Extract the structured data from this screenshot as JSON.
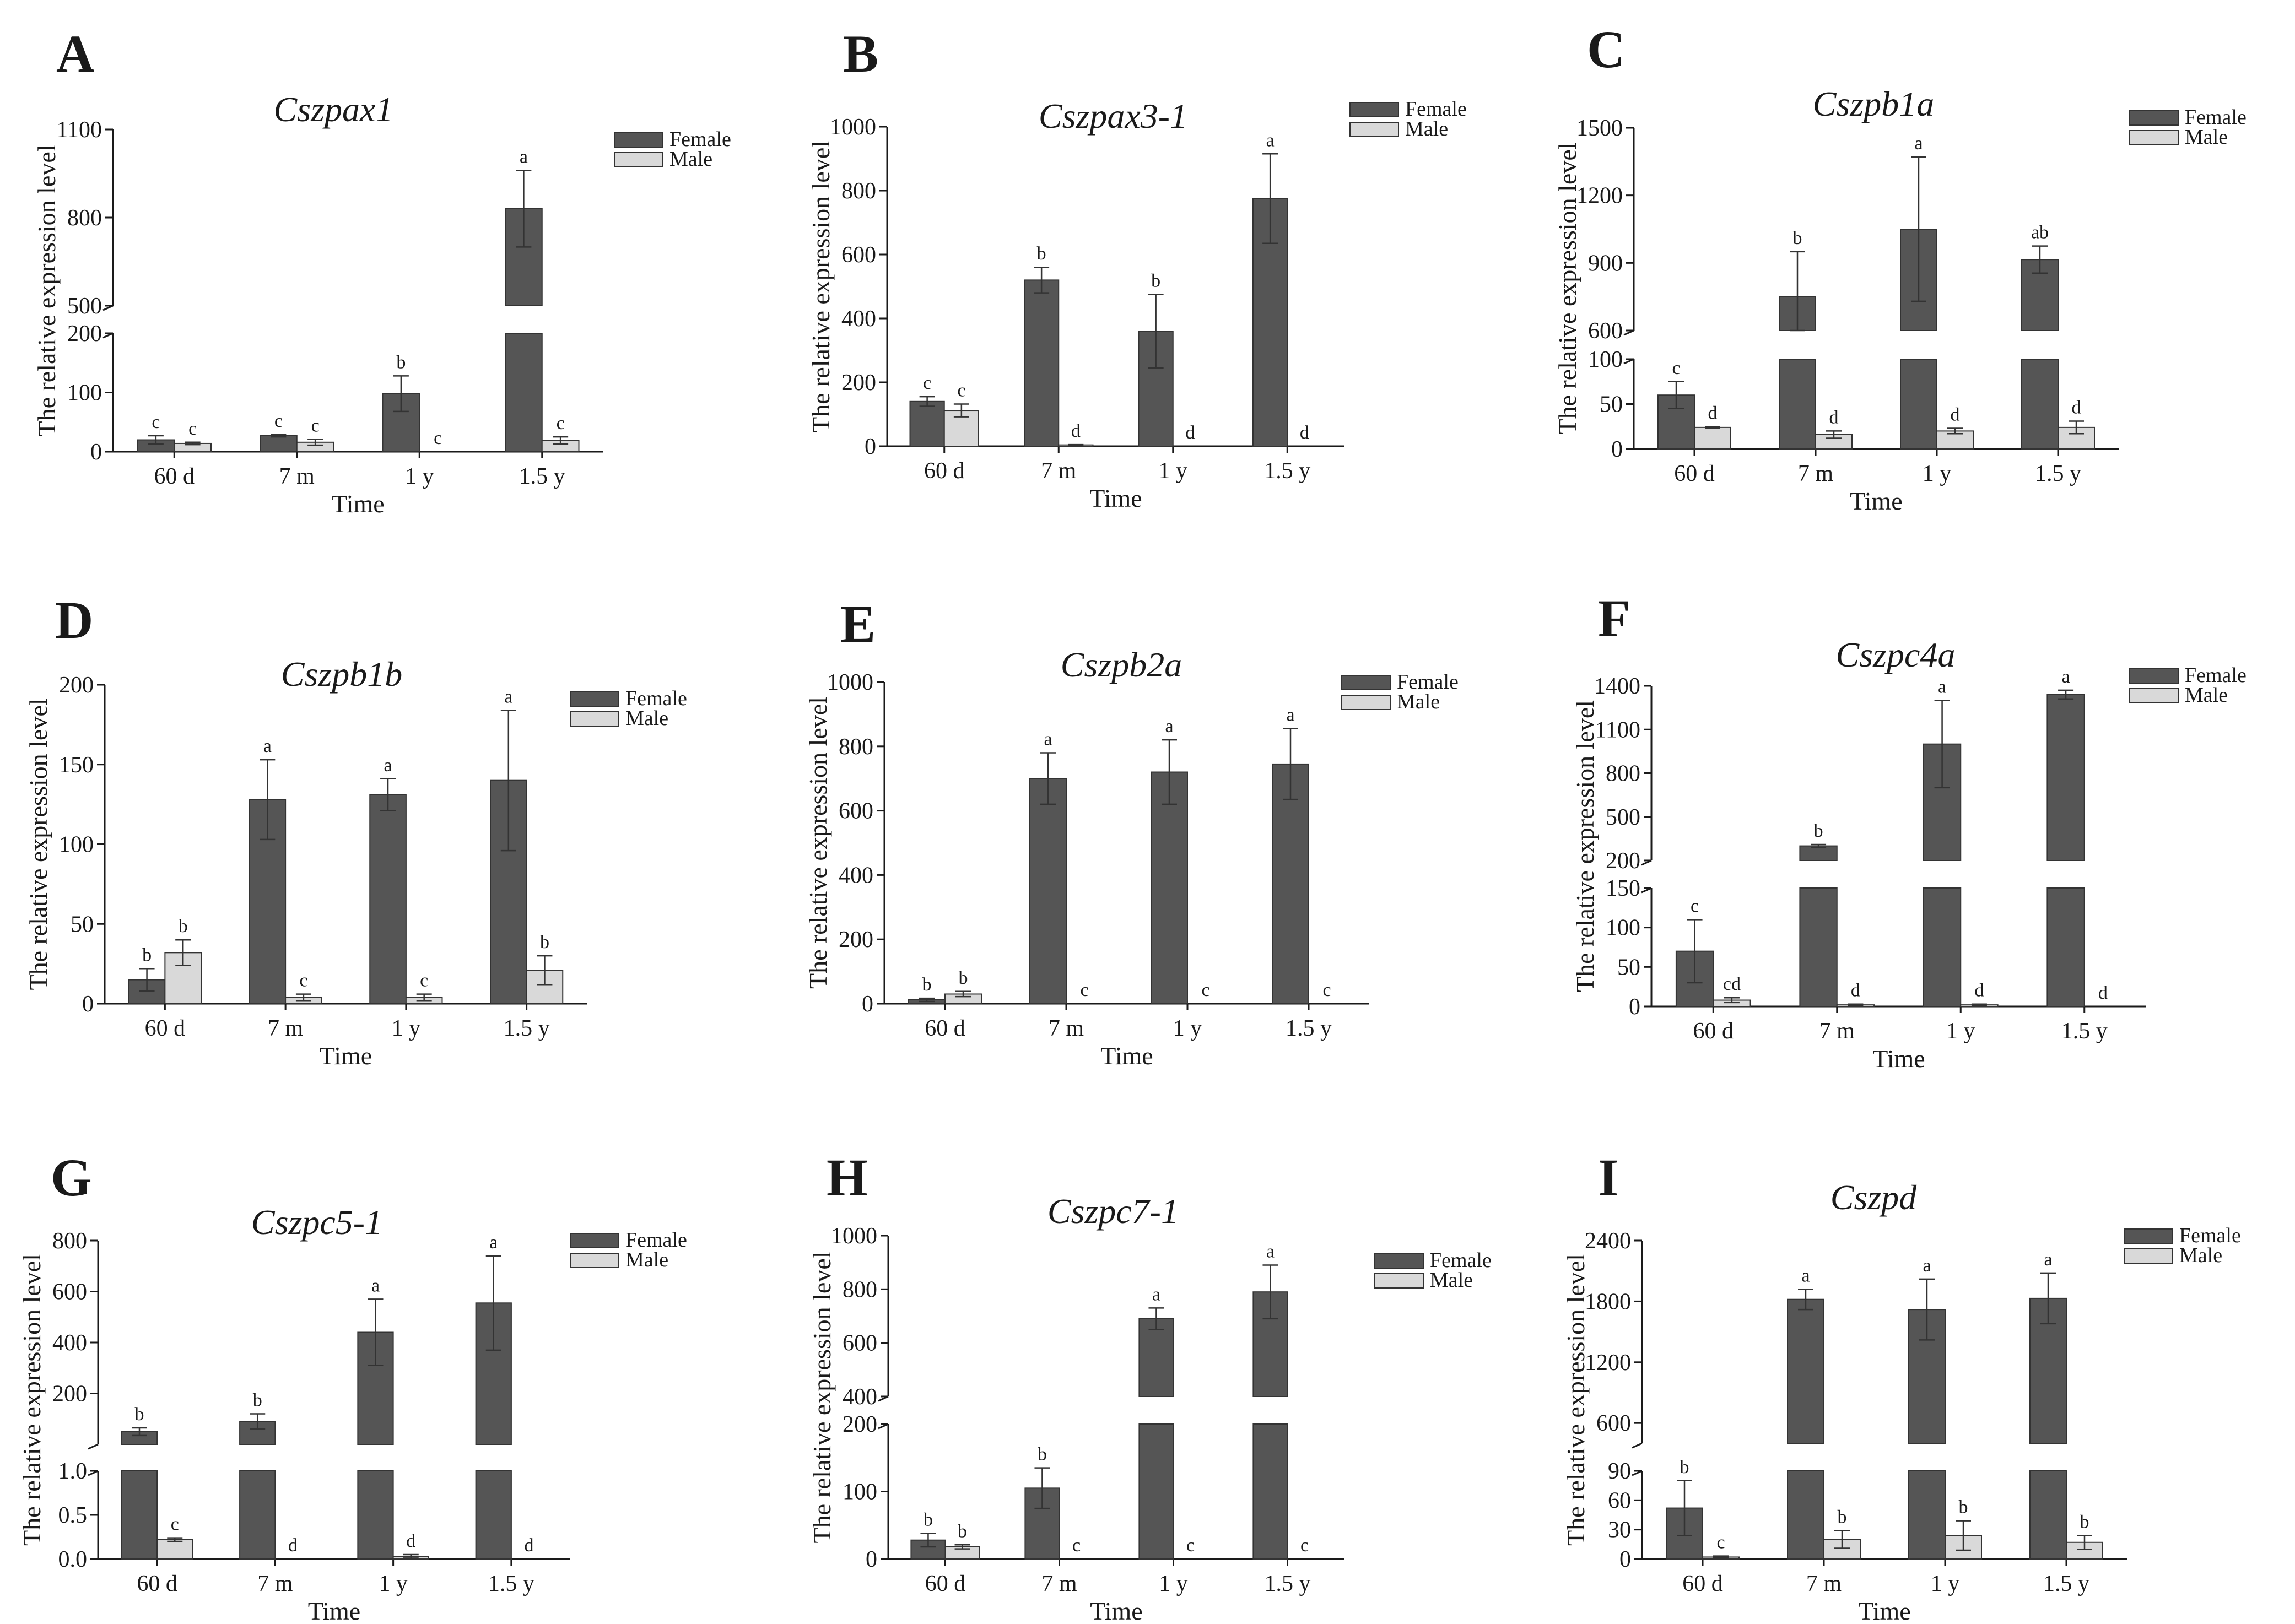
{
  "figure": {
    "legend_labels": [
      "Female",
      "Male"
    ],
    "colors": {
      "female": "#555555",
      "male": "#d9d9d9",
      "axis": "#1a1a1a"
    }
  },
  "chart_data": [
    {
      "panel": "A",
      "title": "Cszpax1",
      "type": "bar",
      "xlabel": "Time",
      "ylabel": "The  relative expression level",
      "categories": [
        "60 d",
        "7 m",
        "1 y",
        "1.5 y"
      ],
      "axis_break": {
        "lower": [
          0,
          200
        ],
        "upper": [
          500,
          1100
        ],
        "lower_ticks": [
          "0",
          "100",
          "200"
        ],
        "upper_ticks": [
          "500",
          "800",
          "1100"
        ]
      },
      "series": [
        {
          "name": "Female",
          "values": [
            20,
            27,
            98,
            830
          ],
          "errors": [
            7,
            2,
            30,
            130
          ],
          "labels": [
            "c",
            "c",
            "b",
            "a"
          ]
        },
        {
          "name": "Male",
          "values": [
            14,
            16,
            0,
            19
          ],
          "errors": [
            2,
            5,
            0,
            6
          ],
          "labels": [
            "c",
            "c",
            "c",
            "c"
          ]
        }
      ]
    },
    {
      "panel": "B",
      "title": "Cszpax3-1",
      "type": "bar",
      "xlabel": "Time",
      "ylabel": "The  relative expression level",
      "categories": [
        "60 d",
        "7 m",
        "1 y",
        "1.5 y"
      ],
      "ylim": [
        0,
        1000
      ],
      "ticks": [
        "0",
        "200",
        "400",
        "600",
        "800",
        "1000"
      ],
      "series": [
        {
          "name": "Female",
          "values": [
            140,
            520,
            360,
            775
          ],
          "errors": [
            15,
            40,
            115,
            140
          ],
          "labels": [
            "c",
            "b",
            "b",
            "a"
          ]
        },
        {
          "name": "Male",
          "values": [
            112,
            4,
            0,
            0
          ],
          "errors": [
            20,
            1,
            0,
            0
          ],
          "labels": [
            "c",
            "d",
            "d",
            "d"
          ]
        }
      ]
    },
    {
      "panel": "C",
      "title": "Cszpb1a",
      "type": "bar",
      "xlabel": "Time",
      "ylabel": "The  relative expression level",
      "categories": [
        "60 d",
        "7 m",
        "1 y",
        "1.5 y"
      ],
      "axis_break": {
        "lower": [
          0,
          100
        ],
        "upper": [
          600,
          1500
        ],
        "lower_ticks": [
          "0",
          "50",
          "100"
        ],
        "upper_ticks": [
          "600",
          "900",
          "1200",
          "1500"
        ]
      },
      "series": [
        {
          "name": "Female",
          "values": [
            60,
            750,
            1050,
            915
          ],
          "errors": [
            15,
            200,
            320,
            60
          ],
          "labels": [
            "c",
            "b",
            "a",
            "ab"
          ]
        },
        {
          "name": "Male",
          "values": [
            24,
            16,
            20,
            24
          ],
          "errors": [
            1,
            4,
            3,
            7
          ],
          "labels": [
            "d",
            "d",
            "d",
            "d"
          ]
        }
      ]
    },
    {
      "panel": "D",
      "title": "Cszpb1b",
      "type": "bar",
      "xlabel": "Time",
      "ylabel": "The  relative expression level",
      "categories": [
        "60 d",
        "7 m",
        "1 y",
        "1.5 y"
      ],
      "ylim": [
        0,
        200
      ],
      "ticks": [
        "0",
        "50",
        "100",
        "150",
        "200"
      ],
      "series": [
        {
          "name": "Female",
          "values": [
            15,
            128,
            131,
            140
          ],
          "errors": [
            7,
            25,
            10,
            44
          ],
          "labels": [
            "b",
            "a",
            "a",
            "a"
          ]
        },
        {
          "name": "Male",
          "values": [
            32,
            4,
            4,
            21
          ],
          "errors": [
            8,
            2,
            2,
            9
          ],
          "labels": [
            "b",
            "c",
            "c",
            "b"
          ]
        }
      ]
    },
    {
      "panel": "E",
      "title": "Cszpb2a",
      "type": "bar",
      "xlabel": "Time",
      "ylabel": "The  relative expression level",
      "categories": [
        "60 d",
        "7 m",
        "1 y",
        "1.5 y"
      ],
      "ylim": [
        0,
        1000
      ],
      "ticks": [
        "0",
        "200",
        "400",
        "600",
        "800",
        "1000"
      ],
      "series": [
        {
          "name": "Female",
          "values": [
            12,
            700,
            720,
            745
          ],
          "errors": [
            5,
            80,
            100,
            110
          ],
          "labels": [
            "b",
            "a",
            "a",
            "a"
          ]
        },
        {
          "name": "Male",
          "values": [
            30,
            0,
            0,
            0
          ],
          "errors": [
            8,
            0,
            0,
            0
          ],
          "labels": [
            "b",
            "c",
            "c",
            "c"
          ]
        }
      ]
    },
    {
      "panel": "F",
      "title": "Cszpc4a",
      "type": "bar",
      "xlabel": "Time",
      "ylabel": "The  relative expression level",
      "categories": [
        "60 d",
        "7 m",
        "1 y",
        "1.5 y"
      ],
      "axis_break": {
        "lower": [
          0,
          150
        ],
        "upper": [
          200,
          1400
        ],
        "lower_ticks": [
          "0",
          "50",
          "100",
          "150"
        ],
        "upper_ticks": [
          "200",
          "500",
          "800",
          "1100",
          "1400"
        ]
      },
      "series": [
        {
          "name": "Female",
          "values": [
            70,
            300,
            1000,
            1340
          ],
          "errors": [
            40,
            10,
            300,
            30
          ],
          "labels": [
            "c",
            "b",
            "a",
            "a"
          ]
        },
        {
          "name": "Male",
          "values": [
            8,
            2,
            2,
            0
          ],
          "errors": [
            3,
            1,
            1,
            0
          ],
          "labels": [
            "cd",
            "d",
            "d",
            "d"
          ]
        }
      ]
    },
    {
      "panel": "G",
      "title": "Cszpc5-1",
      "type": "bar",
      "xlabel": "Time",
      "ylabel": "The  relative expression level",
      "categories": [
        "60 d",
        "7 m",
        "1 y",
        "1.5 y"
      ],
      "axis_break": {
        "lower": [
          0,
          1.0
        ],
        "upper": [
          0,
          800
        ],
        "lower_ticks": [
          "0.0",
          "0.5",
          "1.0"
        ],
        "upper_ticks": [
          "200",
          "400",
          "600",
          "800"
        ]
      },
      "series": [
        {
          "name": "Female",
          "values": [
            50,
            90,
            440,
            555
          ],
          "errors": [
            15,
            30,
            130,
            185
          ],
          "labels": [
            "b",
            "b",
            "a",
            "a"
          ]
        },
        {
          "name": "Male",
          "values": [
            0.22,
            0,
            0.03,
            0
          ],
          "errors": [
            0.02,
            0,
            0.02,
            0
          ],
          "labels": [
            "c",
            "d",
            "d",
            "d"
          ]
        }
      ]
    },
    {
      "panel": "H",
      "title": "Cszpc7-1",
      "type": "bar",
      "xlabel": "Time",
      "ylabel": "The  relative expression level",
      "categories": [
        "60 d",
        "7 m",
        "1 y",
        "1.5 y"
      ],
      "axis_break": {
        "lower": [
          0,
          200
        ],
        "upper": [
          400,
          1000
        ],
        "lower_ticks": [
          "0",
          "100",
          "200"
        ],
        "upper_ticks": [
          "400",
          "600",
          "800",
          "1000"
        ]
      },
      "series": [
        {
          "name": "Female",
          "values": [
            28,
            105,
            690,
            790
          ],
          "errors": [
            10,
            30,
            40,
            100
          ],
          "labels": [
            "b",
            "b",
            "a",
            "a"
          ]
        },
        {
          "name": "Male",
          "values": [
            18,
            0,
            0,
            0
          ],
          "errors": [
            3,
            0,
            0,
            0
          ],
          "labels": [
            "b",
            "c",
            "c",
            "c"
          ]
        }
      ]
    },
    {
      "panel": "I",
      "title": "Cszpd",
      "type": "bar",
      "xlabel": "Time",
      "ylabel": "The  relative expression level",
      "categories": [
        "60 d",
        "7 m",
        "1 y",
        "1.5 y"
      ],
      "axis_break": {
        "lower": [
          0,
          90
        ],
        "upper": [
          400,
          2400
        ],
        "lower_ticks": [
          "0",
          "30",
          "60",
          "90"
        ],
        "upper_ticks": [
          "600",
          "1200",
          "1800",
          "2400"
        ]
      },
      "series": [
        {
          "name": "Female",
          "values": [
            52,
            1820,
            1720,
            1830
          ],
          "errors": [
            28,
            100,
            300,
            250
          ],
          "labels": [
            "b",
            "a",
            "a",
            "a"
          ]
        },
        {
          "name": "Male",
          "values": [
            2,
            20,
            24,
            17
          ],
          "errors": [
            1,
            9,
            15,
            7
          ],
          "labels": [
            "c",
            "b",
            "b",
            "b"
          ]
        }
      ]
    }
  ]
}
